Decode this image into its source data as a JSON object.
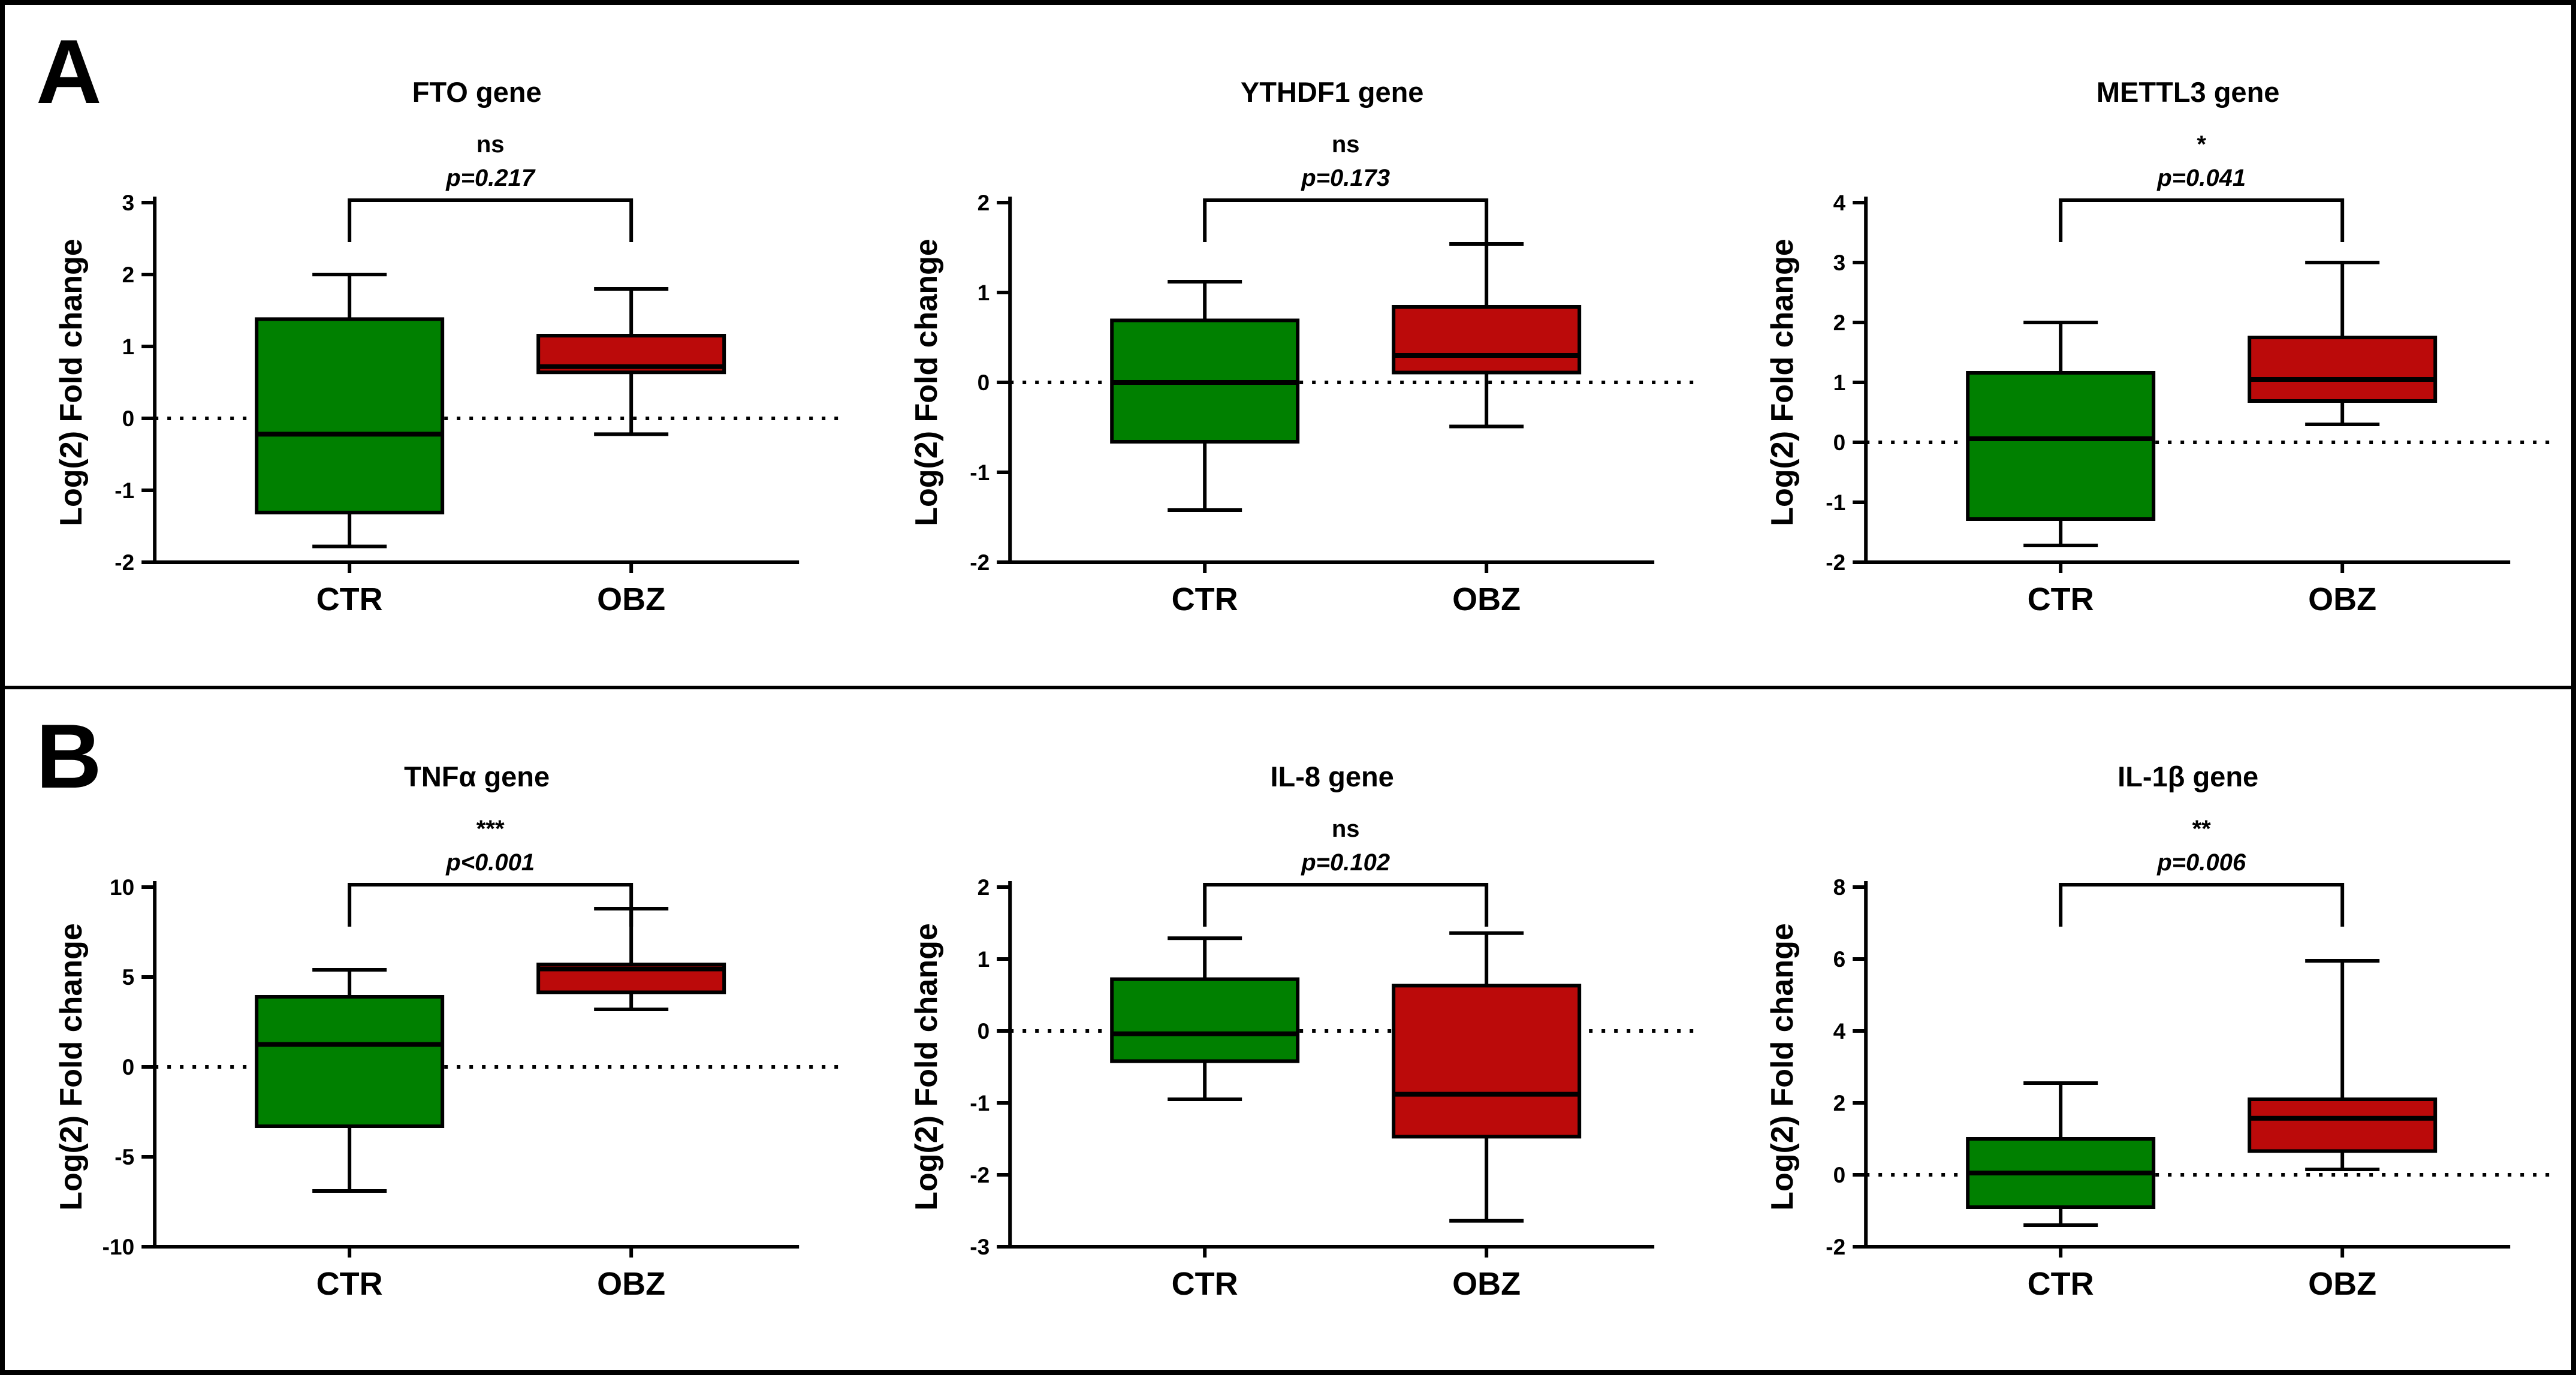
{
  "figure": {
    "background_color": "#FFFFFF",
    "border_color": "#000000",
    "ylabel": "Log(2) Fold change",
    "group_colors": {
      "CTR": "#008000",
      "OBZ": "#BB0A0A"
    }
  },
  "sections": [
    {
      "label": "A"
    },
    {
      "label": "B"
    }
  ],
  "chart_data": [
    {
      "type": "boxplot",
      "panel": "A",
      "title": "FTO gene",
      "significance": "ns",
      "p_value": "p=0.217",
      "ylabel": "Log(2) Fold change",
      "ylim": [
        -2,
        3
      ],
      "yticks": [
        3,
        2,
        1,
        0,
        -1,
        -2
      ],
      "reference_line": 0,
      "categories": [
        "CTR",
        "OBZ"
      ],
      "series": [
        {
          "name": "CTR",
          "color": "#008000",
          "whisker_min": -1.78,
          "q1": -1.31,
          "median": -0.22,
          "q3": 1.38,
          "whisker_max": 2.0
        },
        {
          "name": "OBZ",
          "color": "#BB0A0A",
          "whisker_min": -0.22,
          "q1": 0.64,
          "median": 0.72,
          "q3": 1.15,
          "whisker_max": 1.8
        }
      ]
    },
    {
      "type": "boxplot",
      "panel": "A",
      "title": "YTHDF1 gene",
      "significance": "ns",
      "p_value": "p=0.173",
      "ylabel": "Log(2) Fold change",
      "ylim": [
        -2,
        2
      ],
      "yticks": [
        2,
        1,
        0,
        -1,
        -2
      ],
      "reference_line": 0,
      "categories": [
        "CTR",
        "OBZ"
      ],
      "series": [
        {
          "name": "CTR",
          "color": "#008000",
          "whisker_min": -1.42,
          "q1": -0.66,
          "median": 0.0,
          "q3": 0.69,
          "whisker_max": 1.12
        },
        {
          "name": "OBZ",
          "color": "#BB0A0A",
          "whisker_min": -0.49,
          "q1": 0.11,
          "median": 0.3,
          "q3": 0.84,
          "whisker_max": 1.54
        }
      ]
    },
    {
      "type": "boxplot",
      "panel": "A",
      "title": "METTL3 gene",
      "significance": "*",
      "p_value": "p=0.041",
      "ylabel": "Log(2) Fold change",
      "ylim": [
        -2,
        4
      ],
      "yticks": [
        4,
        3,
        2,
        1,
        0,
        -1,
        -2
      ],
      "reference_line": 0,
      "categories": [
        "CTR",
        "OBZ"
      ],
      "series": [
        {
          "name": "CTR",
          "color": "#008000",
          "whisker_min": -1.72,
          "q1": -1.28,
          "median": 0.06,
          "q3": 1.16,
          "whisker_max": 2.0
        },
        {
          "name": "OBZ",
          "color": "#BB0A0A",
          "whisker_min": 0.3,
          "q1": 0.69,
          "median": 1.05,
          "q3": 1.75,
          "whisker_max": 3.0
        }
      ]
    },
    {
      "type": "boxplot",
      "panel": "B",
      "title": "TNFα gene",
      "significance": "***",
      "p_value": "p<0.001",
      "ylabel": "Log(2) Fold change",
      "ylim": [
        -10,
        10
      ],
      "yticks": [
        10,
        5,
        0,
        -5,
        -10
      ],
      "reference_line": 0,
      "categories": [
        "CTR",
        "OBZ"
      ],
      "series": [
        {
          "name": "CTR",
          "color": "#008000",
          "whisker_min": -6.9,
          "q1": -3.3,
          "median": 1.25,
          "q3": 3.9,
          "whisker_max": 5.4
        },
        {
          "name": "OBZ",
          "color": "#BB0A0A",
          "whisker_min": 3.2,
          "q1": 4.15,
          "median": 5.45,
          "q3": 5.7,
          "whisker_max": 8.8
        }
      ]
    },
    {
      "type": "boxplot",
      "panel": "B",
      "title": "IL-8 gene",
      "significance": "ns",
      "p_value": "p=0.102",
      "ylabel": "Log(2) Fold change",
      "ylim": [
        -3,
        2
      ],
      "yticks": [
        2,
        1,
        0,
        -1,
        -2,
        -3
      ],
      "reference_line": 0,
      "categories": [
        "CTR",
        "OBZ"
      ],
      "series": [
        {
          "name": "CTR",
          "color": "#008000",
          "whisker_min": -0.95,
          "q1": -0.42,
          "median": -0.04,
          "q3": 0.72,
          "whisker_max": 1.29
        },
        {
          "name": "OBZ",
          "color": "#BB0A0A",
          "whisker_min": -2.64,
          "q1": -1.47,
          "median": -0.88,
          "q3": 0.63,
          "whisker_max": 1.36
        }
      ]
    },
    {
      "type": "boxplot",
      "panel": "B",
      "title": "IL-1β gene",
      "significance": "**",
      "p_value": "p=0.006",
      "ylabel": "Log(2) Fold change",
      "ylim": [
        -2,
        8
      ],
      "yticks": [
        8,
        6,
        4,
        2,
        0,
        -2
      ],
      "reference_line": 0,
      "categories": [
        "CTR",
        "OBZ"
      ],
      "series": [
        {
          "name": "CTR",
          "color": "#008000",
          "whisker_min": -1.4,
          "q1": -0.9,
          "median": 0.05,
          "q3": 1.0,
          "whisker_max": 2.55
        },
        {
          "name": "OBZ",
          "color": "#BB0A0A",
          "whisker_min": 0.15,
          "q1": 0.66,
          "median": 1.57,
          "q3": 2.1,
          "whisker_max": 5.95
        }
      ]
    }
  ]
}
